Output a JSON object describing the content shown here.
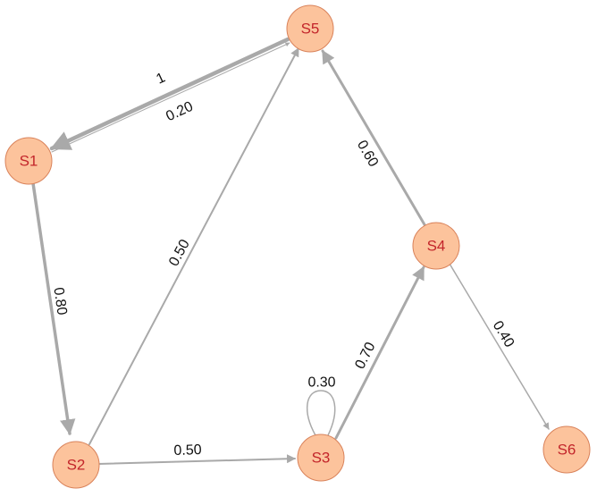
{
  "diagram": {
    "nodes": [
      {
        "id": "S1",
        "label": "S1"
      },
      {
        "id": "S2",
        "label": "S2"
      },
      {
        "id": "S3",
        "label": "S3"
      },
      {
        "id": "S4",
        "label": "S4"
      },
      {
        "id": "S5",
        "label": "S5"
      },
      {
        "id": "S6",
        "label": "S6"
      }
    ],
    "edges": [
      {
        "from": "S5",
        "to": "S1",
        "label": "1"
      },
      {
        "from": "S1",
        "to": "S5",
        "label": "0.20"
      },
      {
        "from": "S1",
        "to": "S2",
        "label": "0.80"
      },
      {
        "from": "S2",
        "to": "S5",
        "label": "0.50"
      },
      {
        "from": "S2",
        "to": "S3",
        "label": "0.50"
      },
      {
        "from": "S3",
        "to": "S3",
        "label": "0.30"
      },
      {
        "from": "S3",
        "to": "S4",
        "label": "0.70"
      },
      {
        "from": "S4",
        "to": "S5",
        "label": "0.60"
      },
      {
        "from": "S4",
        "to": "S6",
        "label": "0.40"
      }
    ],
    "colors": {
      "node_fill": "#fcc39c",
      "node_stroke": "#d9825a",
      "node_text": "#c3262b",
      "edge": "#a9a9a9",
      "edge_text": "#111111"
    }
  }
}
